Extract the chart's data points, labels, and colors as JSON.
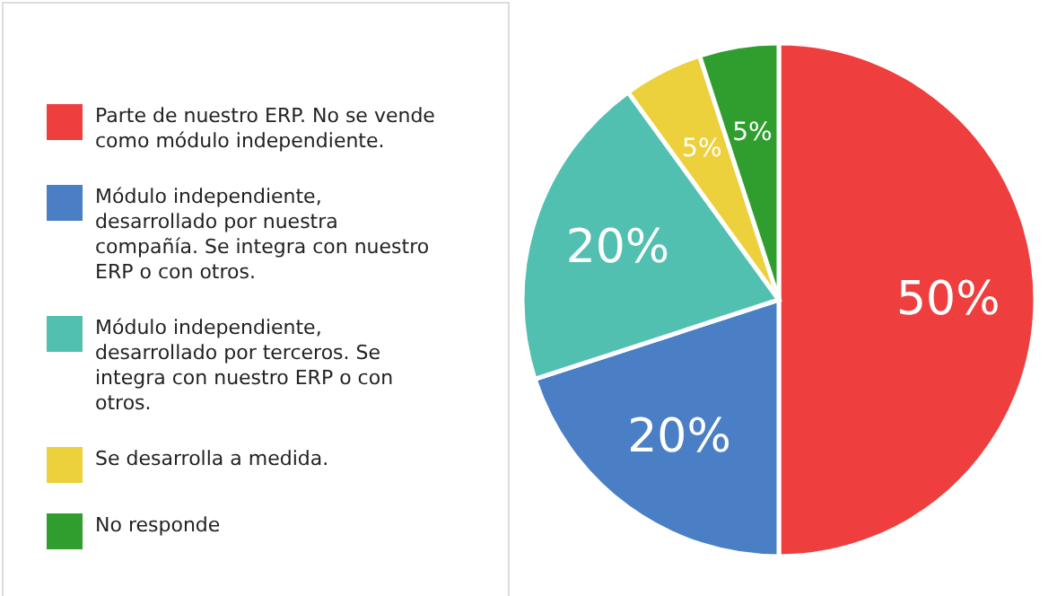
{
  "chart_data": {
    "type": "pie",
    "categories": [
      "Parte de nuestro ERP. No se vende como módulo independiente.",
      "Módulo independiente, desarrollado por nuestra compañía. Se integra con nuestro ERP o con otros.",
      "Módulo independiente, desarrollado por terceros. Se integra con nuestro ERP o con otros.",
      "Se desarrolla a medida.",
      "No responde"
    ],
    "values": [
      50,
      20,
      20,
      5,
      5
    ],
    "colors": [
      "#ef3e3e",
      "#4a7fc5",
      "#52c0b0",
      "#ecd03c",
      "#2f9e2f"
    ],
    "value_labels": [
      "50%",
      "20%",
      "20%",
      "5%",
      "5%"
    ],
    "legend": "left"
  }
}
